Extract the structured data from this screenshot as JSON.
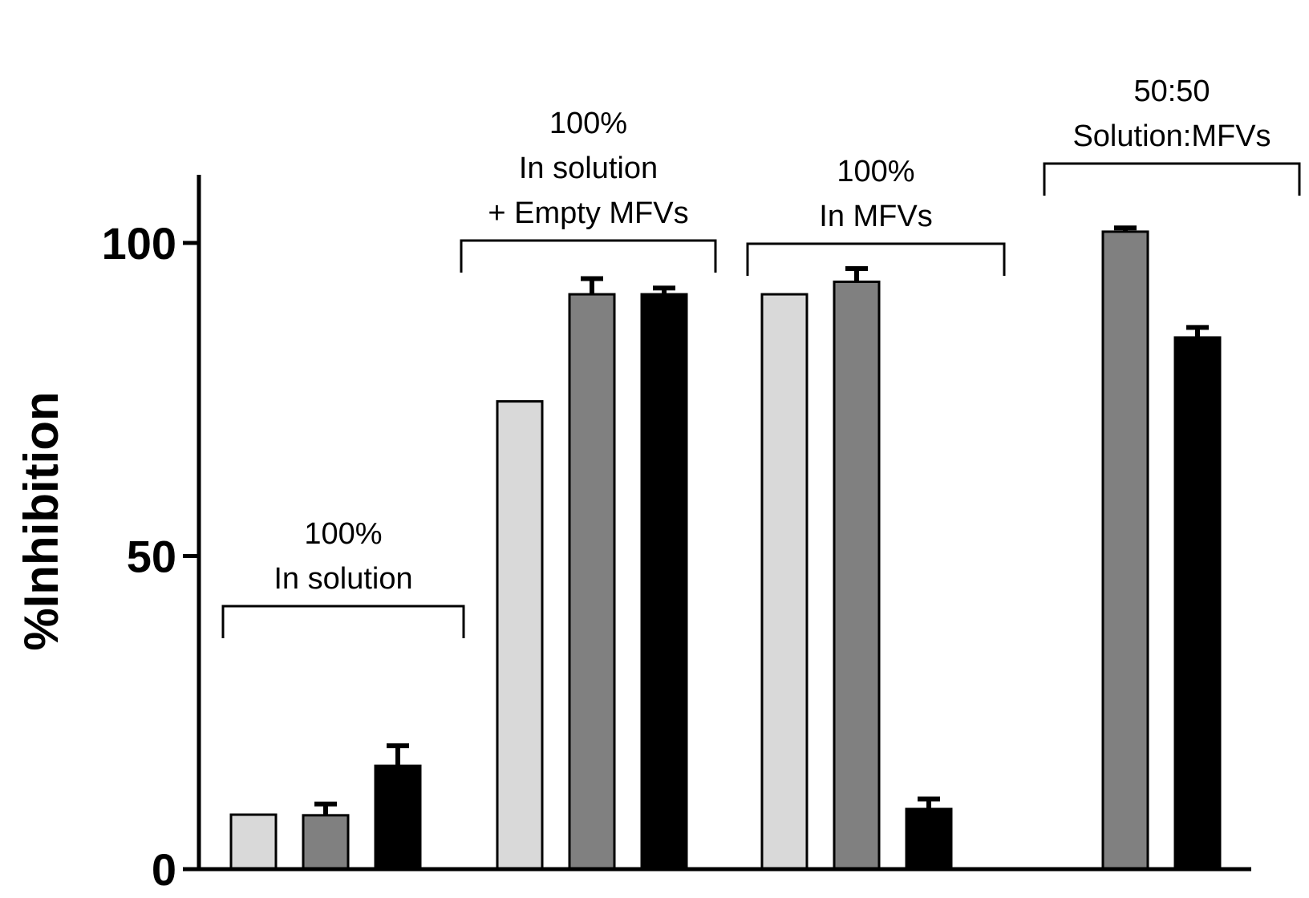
{
  "chart_data": {
    "type": "bar",
    "title": "",
    "xlabel": "",
    "ylabel": "%Inhibition",
    "ylim": [
      0,
      112
    ],
    "yticks": [
      0,
      50,
      100
    ],
    "grid": false,
    "legend": "none",
    "series_colors": [
      "#d9d9d9",
      "#808080",
      "#000000"
    ],
    "groups": [
      {
        "label_lines": [
          "100%",
          "In solution"
        ],
        "bars": [
          {
            "series": 0,
            "value": 8.7,
            "error": null
          },
          {
            "series": 1,
            "value": 8.6,
            "error": 1.8
          },
          {
            "series": 2,
            "value": 16.5,
            "error": 3.2
          }
        ]
      },
      {
        "label_lines": [
          "100%",
          "In solution",
          "+ Empty MFVs"
        ],
        "bars": [
          {
            "series": 0,
            "value": 74.7,
            "error": null
          },
          {
            "series": 1,
            "value": 91.8,
            "error": 2.5
          },
          {
            "series": 2,
            "value": 91.8,
            "error": 1.0
          }
        ]
      },
      {
        "label_lines": [
          "100%",
          "In MFVs"
        ],
        "bars": [
          {
            "series": 0,
            "value": 91.8,
            "error": null
          },
          {
            "series": 1,
            "value": 93.8,
            "error": 2.1
          },
          {
            "series": 2,
            "value": 9.6,
            "error": 1.6
          }
        ]
      },
      {
        "label_lines": [
          "50:50",
          "Solution:MFVs"
        ],
        "bars": [
          {
            "series": 1,
            "value": 101.8,
            "error": 0.6
          },
          {
            "series": 2,
            "value": 84.9,
            "error": 1.6
          }
        ]
      }
    ]
  }
}
